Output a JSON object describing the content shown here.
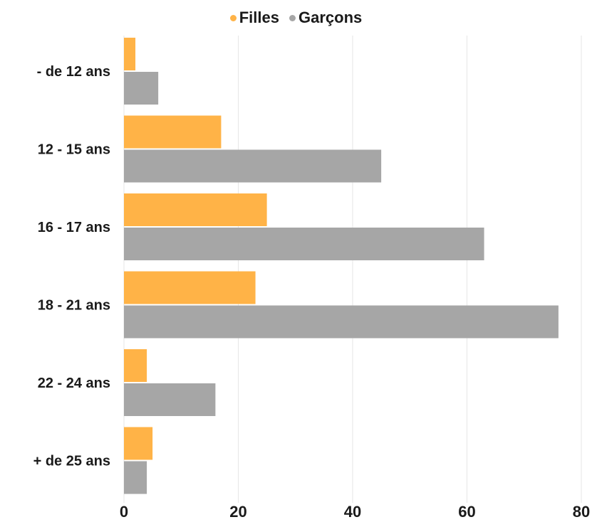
{
  "chart_data": {
    "type": "bar",
    "orientation": "horizontal",
    "categories": [
      "- de 12 ans",
      "12 - 15 ans",
      "16 - 17 ans",
      "18 - 21 ans",
      "22 - 24 ans",
      "+ de 25 ans"
    ],
    "series": [
      {
        "name": "Filles",
        "color": "#FFB347",
        "values": [
          2,
          17,
          25,
          23,
          4,
          5
        ]
      },
      {
        "name": "Garçons",
        "color": "#A6A6A6",
        "values": [
          6,
          45,
          63,
          76,
          16,
          4
        ]
      }
    ],
    "xlim": [
      0,
      80
    ],
    "xticks": [
      "0",
      "20",
      "40",
      "60",
      "80"
    ],
    "grid": true,
    "legend_position": "top-center"
  }
}
